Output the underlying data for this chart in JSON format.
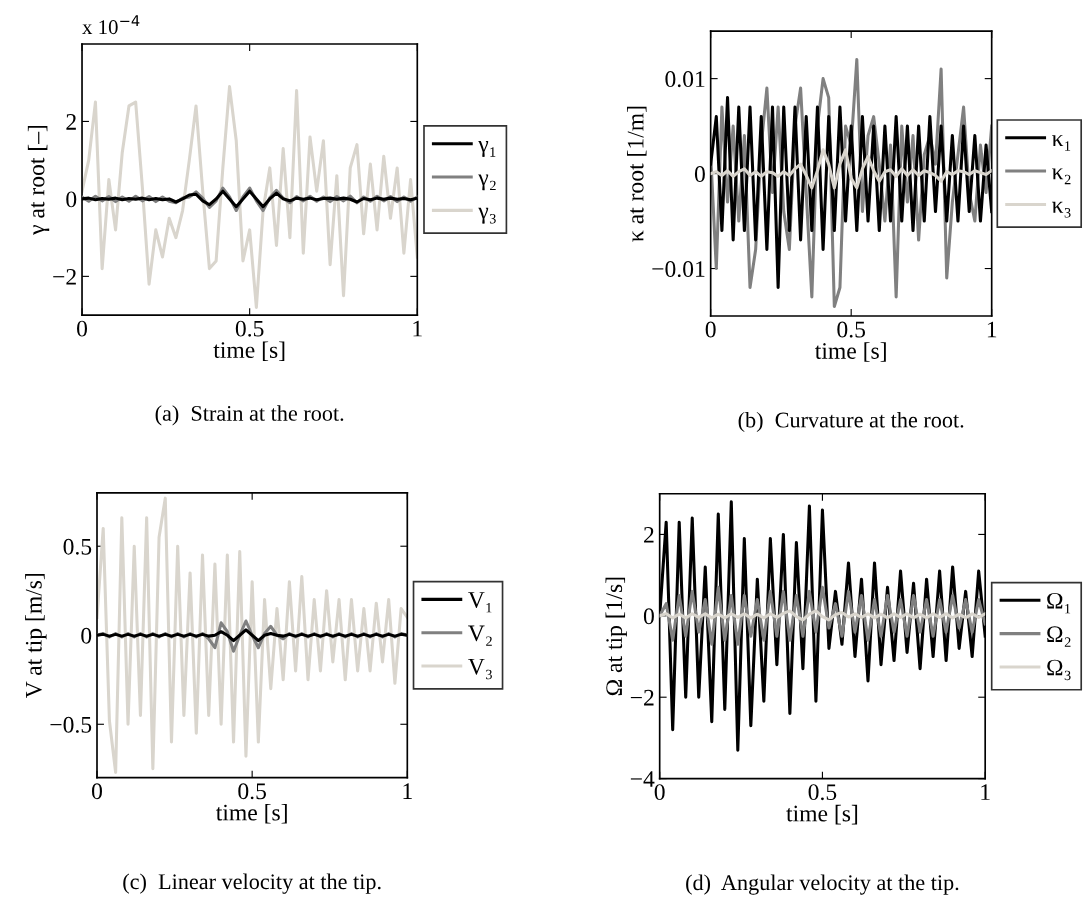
{
  "chart_data": [
    {
      "type": "line",
      "title": "(a)  Strain at the root.",
      "xlabel": "time [s]",
      "ylabel": "γ at root [–]",
      "annotations": [
        "x 10$^{−4}$"
      ],
      "legend": "right",
      "xlim": [
        0,
        1
      ],
      "xticks": [
        0,
        0.5,
        1
      ],
      "ylim": [
        -3,
        4
      ],
      "yticks": [
        -2,
        0,
        2
      ],
      "x": [
        0,
        0.02,
        0.04,
        0.06,
        0.08,
        0.1,
        0.12,
        0.14,
        0.16,
        0.18,
        0.2,
        0.22,
        0.24,
        0.26,
        0.28,
        0.3,
        0.32,
        0.34,
        0.36,
        0.38,
        0.4,
        0.42,
        0.44,
        0.46,
        0.48,
        0.5,
        0.52,
        0.54,
        0.56,
        0.58,
        0.6,
        0.62,
        0.64,
        0.66,
        0.68,
        0.7,
        0.72,
        0.74,
        0.76,
        0.78,
        0.8,
        0.82,
        0.84,
        0.86,
        0.88,
        0.9,
        0.92,
        0.94,
        0.96,
        0.98,
        1
      ],
      "series": [
        {
          "name": "γ₁",
          "color": "#000000",
          "values": [
            0,
            0.02,
            -0.02,
            0.01,
            -0.01,
            0.02,
            -0.02,
            0.01,
            -0.01,
            0.02,
            -0.02,
            0.01,
            -0.02,
            0,
            -0.08,
            0,
            0.1,
            0.12,
            -0.05,
            -0.15,
            0,
            0.2,
            0,
            -0.2,
            0,
            0.2,
            0,
            -0.2,
            0,
            0.15,
            0,
            -0.05,
            0.02,
            -0.01,
            0.02,
            -0.02,
            0.01,
            0.02,
            -0.01,
            0.02,
            -0.01,
            -0.08,
            0.01,
            -0.02,
            0.02,
            -0.01,
            0.02,
            -0.01,
            0.01,
            -0.02,
            0.02
          ]
        },
        {
          "name": "γ₂",
          "color": "#808080",
          "values": [
            0.05,
            -0.06,
            0.07,
            -0.05,
            0.06,
            -0.07,
            0.05,
            -0.06,
            0.07,
            -0.05,
            0.06,
            -0.07,
            0.05,
            -0.06,
            -0.1,
            0.02,
            0.05,
            0.18,
            0.02,
            -0.22,
            -0.05,
            0.28,
            0.05,
            -0.3,
            0.05,
            0.28,
            -0.05,
            -0.3,
            0.03,
            0.22,
            0.02,
            -0.1,
            0.06,
            -0.05,
            0.07,
            -0.06,
            0.05,
            -0.07,
            0.06,
            -0.05,
            0.07,
            -0.1,
            0.05,
            -0.06,
            0.07,
            -0.05,
            0.06,
            -0.07,
            0.05,
            -0.06,
            0.05
          ]
        },
        {
          "name": "γ₃",
          "color": "#d9d5cd",
          "values": [
            0.2,
            1.0,
            2.5,
            -1.8,
            0.5,
            -0.8,
            1.2,
            2.4,
            2.5,
            0.3,
            -2.2,
            -0.8,
            -1.5,
            -0.5,
            -1.0,
            -0.3,
            1.0,
            2.4,
            0.2,
            -1.8,
            -1.6,
            0.8,
            2.9,
            1.5,
            -1.6,
            -0.8,
            -2.8,
            -0.3,
            0.8,
            -1.2,
            1.3,
            -1.0,
            2.8,
            -1.4,
            1.6,
            0.2,
            1.5,
            -1.7,
            0.6,
            -2.5,
            0.8,
            1.4,
            -0.9,
            0.9,
            -0.8,
            1.1,
            -0.5,
            0.8,
            -1.4,
            0.5,
            -1.5
          ]
        }
      ]
    },
    {
      "type": "line",
      "title": "(b)  Curvature at the root.",
      "xlabel": "time [s]",
      "ylabel": "κ at root [1/m]",
      "legend": "right",
      "xlim": [
        0,
        1
      ],
      "xticks": [
        0,
        0.5,
        1
      ],
      "ylim": [
        -0.015,
        0.015
      ],
      "yticks": [
        -0.01,
        0,
        0.01
      ],
      "x": [
        0,
        0.02,
        0.04,
        0.06,
        0.08,
        0.1,
        0.12,
        0.14,
        0.16,
        0.18,
        0.2,
        0.22,
        0.24,
        0.26,
        0.28,
        0.3,
        0.32,
        0.34,
        0.36,
        0.38,
        0.4,
        0.42,
        0.44,
        0.46,
        0.48,
        0.5,
        0.52,
        0.54,
        0.56,
        0.58,
        0.6,
        0.62,
        0.64,
        0.66,
        0.68,
        0.7,
        0.72,
        0.74,
        0.76,
        0.78,
        0.8,
        0.82,
        0.84,
        0.86,
        0.88,
        0.9,
        0.92,
        0.94,
        0.96,
        0.98,
        1
      ],
      "series": [
        {
          "name": "κ₁",
          "color": "#000000",
          "values": [
            0.001,
            0.006,
            -0.006,
            0.008,
            -0.007,
            0.007,
            -0.006,
            0.007,
            -0.007,
            0.006,
            -0.008,
            0.007,
            -0.012,
            0.007,
            -0.006,
            0.007,
            -0.007,
            0.006,
            -0.006,
            0.007,
            -0.008,
            0.006,
            -0.006,
            0.007,
            -0.005,
            0.005,
            -0.006,
            0.006,
            -0.005,
            0.005,
            -0.006,
            0.005,
            -0.005,
            0.006,
            -0.005,
            0.005,
            -0.006,
            0.005,
            -0.005,
            0.006,
            -0.004,
            0.005,
            -0.005,
            0.004,
            -0.005,
            0.005,
            -0.004,
            0.004,
            -0.005,
            0.003,
            -0.004
          ]
        },
        {
          "name": "κ₂",
          "color": "#808080",
          "values": [
            0.002,
            -0.01,
            0.007,
            -0.003,
            0.005,
            -0.005,
            0.004,
            -0.012,
            -0.008,
            0.003,
            0.009,
            -0.002,
            0.007,
            -0.004,
            -0.008,
            0.005,
            0.009,
            -0.002,
            -0.013,
            0.005,
            0.01,
            0.008,
            -0.014,
            -0.012,
            0.005,
            0.003,
            0.012,
            -0.004,
            0.004,
            0.006,
            0.001,
            -0.005,
            0.003,
            -0.013,
            0.005,
            -0.003,
            0.004,
            -0.007,
            0.002,
            0.004,
            0.001,
            0.011,
            -0.011,
            -0.003,
            0.002,
            0.007,
            -0.002,
            -0.005,
            0.003,
            -0.002,
            0.005
          ]
        },
        {
          "name": "κ₃",
          "color": "#d9d5cd",
          "values": [
            0,
            0.0002,
            -0.0002,
            0.0003,
            -0.0003,
            0.0002,
            0.0005,
            -0.0002,
            0.0002,
            -0.0003,
            0.0002,
            0.0001,
            -0.0003,
            0.0002,
            -0.0002,
            0.0005,
            0.001,
            -0.0002,
            -0.0015,
            0.0003,
            0.0025,
            0.001,
            -0.0015,
            0.001,
            0.0025,
            -0.0005,
            -0.0015,
            0.0005,
            0.0018,
            0.0003,
            -0.0008,
            0.0002,
            0.0004,
            -0.0003,
            0.0005,
            -0.0002,
            0.0004,
            -0.0002,
            0.0003,
            0.0001,
            -0.0002,
            -0.0008,
            0.0002,
            -0.0001,
            0.0003,
            0.0002,
            -0.0001,
            0.0003,
            0.0001,
            -0.0001,
            0.0003
          ]
        }
      ]
    },
    {
      "type": "line",
      "title": "(c)  Linear velocity at the tip.",
      "xlabel": "time [s]",
      "ylabel": "V at tip [m/s]",
      "legend": "right",
      "xlim": [
        0,
        1
      ],
      "xticks": [
        0,
        0.5,
        1
      ],
      "ylim": [
        -0.8,
        0.8
      ],
      "yticks": [
        -0.5,
        0,
        0.5
      ],
      "x": [
        0,
        0.02,
        0.04,
        0.06,
        0.08,
        0.1,
        0.12,
        0.14,
        0.16,
        0.18,
        0.2,
        0.22,
        0.24,
        0.26,
        0.28,
        0.3,
        0.32,
        0.34,
        0.36,
        0.38,
        0.4,
        0.42,
        0.44,
        0.46,
        0.48,
        0.5,
        0.52,
        0.54,
        0.56,
        0.58,
        0.6,
        0.62,
        0.64,
        0.66,
        0.68,
        0.7,
        0.72,
        0.74,
        0.76,
        0.78,
        0.8,
        0.82,
        0.84,
        0.86,
        0.88,
        0.9,
        0.92,
        0.94,
        0.96,
        0.98,
        1
      ],
      "series": [
        {
          "name": "V₁",
          "color": "#000000",
          "values": [
            0,
            0.005,
            -0.005,
            0.005,
            -0.005,
            0.005,
            -0.005,
            0.005,
            -0.005,
            0.005,
            -0.005,
            0.005,
            -0.005,
            0.005,
            -0.005,
            0.005,
            -0.005,
            0.005,
            -0.005,
            0.0,
            0.02,
            0.0,
            -0.03,
            0.0,
            0.03,
            0.0,
            -0.03,
            0.0,
            0.01,
            0.0,
            -0.005,
            0.005,
            -0.005,
            0.005,
            -0.005,
            0.005,
            -0.005,
            0.005,
            -0.005,
            0.005,
            -0.005,
            0.005,
            -0.005,
            0.005,
            -0.005,
            0.005,
            -0.005,
            0.005,
            -0.005,
            0.005,
            0
          ]
        },
        {
          "name": "V₂",
          "color": "#808080",
          "values": [
            0,
            0.01,
            -0.01,
            0.01,
            -0.01,
            0.01,
            -0.01,
            0.01,
            -0.01,
            0.01,
            -0.01,
            0.01,
            -0.01,
            0.01,
            -0.01,
            0.01,
            -0.01,
            0.01,
            -0.02,
            -0.07,
            0.07,
            0.02,
            -0.09,
            0.0,
            0.08,
            0.0,
            -0.07,
            0.01,
            0.05,
            0.0,
            -0.02,
            0.01,
            -0.01,
            0.01,
            -0.01,
            0.01,
            -0.01,
            0.01,
            -0.01,
            0.01,
            -0.01,
            0.01,
            -0.01,
            0.01,
            -0.01,
            0.01,
            -0.01,
            0.01,
            -0.01,
            0.01,
            0
          ]
        },
        {
          "name": "V₃",
          "color": "#d9d5cd",
          "values": [
            0.1,
            0.6,
            -0.48,
            -0.77,
            0.66,
            -0.5,
            0.5,
            -0.45,
            0.66,
            -0.75,
            0.55,
            0.77,
            -0.6,
            0.5,
            -0.45,
            0.35,
            -0.55,
            0.45,
            -0.45,
            0.4,
            -0.5,
            0.45,
            -0.6,
            0.47,
            -0.68,
            0.3,
            -0.6,
            0.2,
            -0.3,
            0.15,
            -0.25,
            0.3,
            -0.2,
            0.33,
            -0.25,
            0.2,
            -0.2,
            0.25,
            -0.15,
            0.2,
            -0.25,
            0.2,
            -0.2,
            0.15,
            -0.2,
            0.18,
            -0.15,
            0.2,
            -0.27,
            0.15,
            0.1
          ]
        }
      ]
    },
    {
      "type": "line",
      "title": "(d)  Angular velocity at the tip.",
      "xlabel": "time [s]",
      "ylabel": "Ω at tip [1/s]",
      "legend": "right",
      "xlim": [
        0,
        1
      ],
      "xticks": [
        0,
        0.5,
        1
      ],
      "ylim": [
        -4,
        3
      ],
      "yticks": [
        -4,
        -2,
        0,
        2
      ],
      "x": [
        0,
        0.02,
        0.04,
        0.06,
        0.08,
        0.1,
        0.12,
        0.14,
        0.16,
        0.18,
        0.2,
        0.22,
        0.24,
        0.26,
        0.28,
        0.3,
        0.32,
        0.34,
        0.36,
        0.38,
        0.4,
        0.42,
        0.44,
        0.46,
        0.48,
        0.5,
        0.52,
        0.54,
        0.56,
        0.58,
        0.6,
        0.62,
        0.64,
        0.66,
        0.68,
        0.7,
        0.72,
        0.74,
        0.76,
        0.78,
        0.8,
        0.82,
        0.84,
        0.86,
        0.88,
        0.9,
        0.92,
        0.94,
        0.96,
        0.98,
        1
      ],
      "series": [
        {
          "name": "Ω₁",
          "color": "#000000",
          "values": [
            0,
            2.3,
            -2.8,
            2.3,
            -2.0,
            2.4,
            -2.0,
            1.2,
            -2.6,
            2.5,
            -2.3,
            2.8,
            -3.3,
            1.9,
            -2.7,
            0.9,
            -2.1,
            1.9,
            -1.2,
            2.0,
            -2.4,
            1.8,
            -1.3,
            2.7,
            -2.1,
            2.6,
            -0.8,
            0.6,
            -0.7,
            1.3,
            -1.0,
            0.9,
            -1.6,
            1.3,
            -1.2,
            0.7,
            -1.1,
            1.1,
            -0.9,
            0.8,
            -1.3,
            0.9,
            -1.0,
            1.1,
            -1.1,
            1.2,
            -0.8,
            0.6,
            -1.0,
            1.1,
            -0.5
          ]
        },
        {
          "name": "Ω₂",
          "color": "#808080",
          "values": [
            0,
            0.3,
            -0.6,
            0.5,
            -0.5,
            0.6,
            -0.4,
            0.4,
            -0.7,
            0.7,
            -0.6,
            0.5,
            -0.7,
            0.5,
            -0.5,
            0.4,
            -0.6,
            0.6,
            -0.5,
            0.6,
            -0.6,
            0.5,
            -0.5,
            0.6,
            -0.4,
            0.7,
            -0.3,
            0.3,
            -0.5,
            0.6,
            -0.4,
            0.5,
            -0.6,
            0.4,
            -0.5,
            0.5,
            -0.4,
            0.4,
            -0.5,
            0.5,
            -0.4,
            0.4,
            -0.5,
            0.4,
            -0.4,
            0.5,
            -0.3,
            0.4,
            -0.4,
            0.4,
            -0.2
          ]
        },
        {
          "name": "Ω₃",
          "color": "#d9d5cd",
          "values": [
            0,
            0.05,
            -0.05,
            0.04,
            -0.05,
            0.05,
            -0.04,
            0.05,
            -0.05,
            0.04,
            -0.05,
            0.05,
            -0.04,
            0.05,
            -0.05,
            0.04,
            -0.05,
            0.05,
            -0.04,
            0.06,
            0.12,
            -0.02,
            -0.1,
            0.04,
            0.12,
            -0.02,
            -0.1,
            0.03,
            0.08,
            -0.03,
            0.05,
            -0.04,
            0.05,
            -0.05,
            0.04,
            -0.05,
            0.05,
            -0.04,
            0.05,
            -0.05,
            0.04,
            -0.05,
            0.05,
            -0.04,
            0.05,
            -0.05,
            0.04,
            -0.05,
            0.05,
            -0.04,
            0.05
          ]
        }
      ]
    }
  ]
}
